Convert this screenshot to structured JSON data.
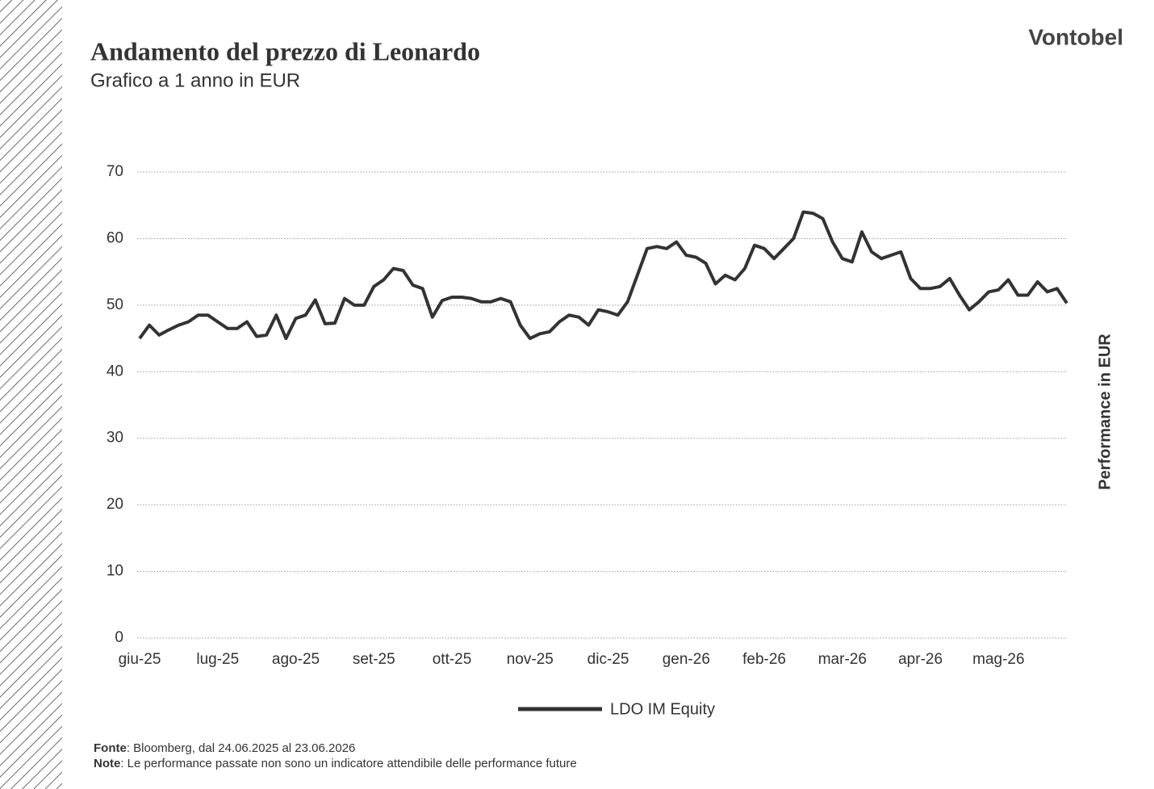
{
  "chart_data": {
    "type": "line",
    "title": "Andamento del prezzo di Leonardo",
    "subtitle": "Grafico a 1 anno in EUR",
    "brand": "Vontobel",
    "y_axis_label": "Performance in EUR",
    "categories": [
      "giu-25",
      null,
      null,
      null,
      null,
      null,
      null,
      null,
      "lug-25",
      null,
      null,
      null,
      null,
      null,
      null,
      null,
      "ago-25",
      null,
      null,
      null,
      null,
      null,
      null,
      null,
      "set-25",
      null,
      null,
      null,
      null,
      null,
      null,
      null,
      "ott-25",
      null,
      null,
      null,
      null,
      null,
      null,
      null,
      "nov-25",
      null,
      null,
      null,
      null,
      null,
      null,
      null,
      "dic-25",
      null,
      null,
      null,
      null,
      null,
      null,
      null,
      "gen-26",
      null,
      null,
      null,
      null,
      null,
      null,
      null,
      "feb-26",
      null,
      null,
      null,
      null,
      null,
      null,
      null,
      "mar-26",
      null,
      null,
      null,
      null,
      null,
      null,
      null,
      "apr-26",
      null,
      null,
      null,
      null,
      null,
      null,
      null,
      "mag-26",
      null,
      null,
      null,
      null,
      null,
      null,
      null
    ],
    "series": [
      {
        "name": "LDO IM Equity",
        "color": "#333333",
        "values": [
          45,
          47,
          45.5,
          46.3,
          47,
          47.5,
          48.5,
          48.5,
          47.5,
          46.5,
          46.5,
          47.5,
          45.3,
          45.5,
          48.5,
          45,
          48,
          48.5,
          50.8,
          47.2,
          47.3,
          51,
          50,
          50,
          52.8,
          53.8,
          55.5,
          55.2,
          53,
          52.5,
          48.2,
          50.7,
          51.2,
          51.2,
          51,
          50.5,
          50.5,
          51,
          50.5,
          47,
          45,
          45.7,
          46,
          47.5,
          48.5,
          48.2,
          47,
          49.3,
          49,
          48.5,
          50.5,
          54.5,
          58.5,
          58.8,
          58.5,
          59.5,
          57.5,
          57.2,
          56.3,
          53.2,
          54.5,
          53.8,
          55.5,
          59,
          58.5,
          57,
          58.5,
          60,
          64,
          63.8,
          63,
          59.5,
          57,
          56.5,
          61,
          58,
          57,
          57.5,
          58,
          54,
          52.5,
          52.5,
          52.8,
          54,
          51.5,
          49.3,
          50.5,
          52,
          52.3,
          53.8,
          51.5,
          51.5,
          53.5,
          52,
          52.5,
          50.3
        ]
      }
    ],
    "ylim": [
      0,
      70
    ],
    "yticks": [
      0,
      10,
      20,
      30,
      40,
      50,
      60,
      70
    ],
    "grid": true,
    "footnotes": [
      {
        "label": "Fonte",
        "text": ": Bloomberg, dal 24.06.2025 al 23.06.2026"
      },
      {
        "label": "Note",
        "text": ": Le performance passate non sono un indicatore attendibile delle performance future"
      }
    ]
  }
}
